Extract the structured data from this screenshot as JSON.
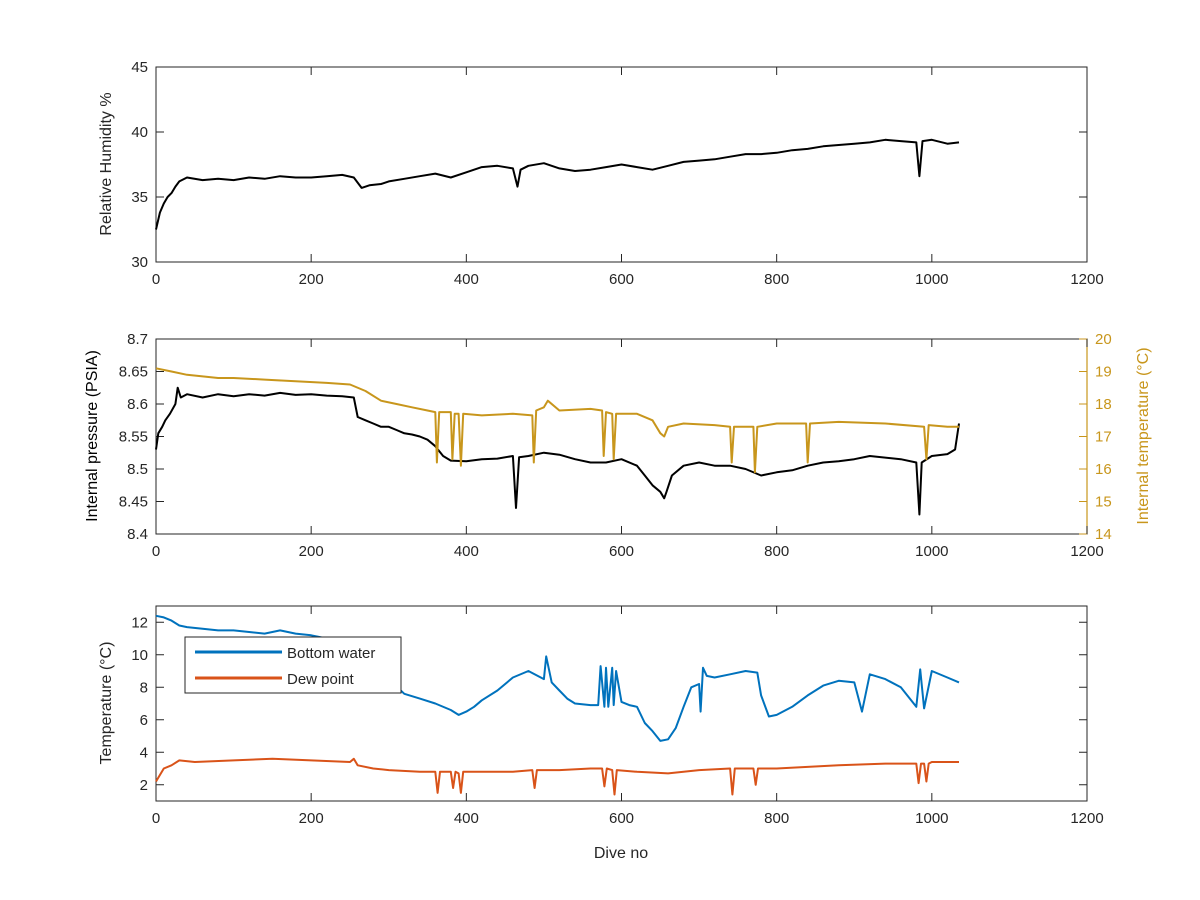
{
  "chart_data": [
    {
      "type": "line",
      "panel": "top",
      "ylabel": "Relative Humidity %",
      "xlim": [
        0,
        1200
      ],
      "ylim": [
        30,
        45
      ],
      "xticks": [
        0,
        200,
        400,
        600,
        800,
        1000,
        1200
      ],
      "yticks": [
        30,
        35,
        40,
        45
      ],
      "grid": false,
      "series": [
        {
          "color": "#000000",
          "x": [
            0,
            5,
            10,
            15,
            20,
            25,
            30,
            40,
            60,
            80,
            100,
            120,
            140,
            160,
            180,
            200,
            220,
            240,
            255,
            265,
            275,
            290,
            300,
            320,
            340,
            360,
            380,
            400,
            420,
            440,
            460,
            466,
            470,
            480,
            500,
            520,
            540,
            560,
            580,
            600,
            620,
            640,
            660,
            680,
            700,
            720,
            740,
            760,
            780,
            800,
            820,
            840,
            860,
            880,
            900,
            920,
            940,
            960,
            980,
            984,
            988,
            1000,
            1020,
            1035
          ],
          "y": [
            32.5,
            33.8,
            34.5,
            35.0,
            35.3,
            35.8,
            36.2,
            36.5,
            36.3,
            36.4,
            36.3,
            36.5,
            36.4,
            36.6,
            36.5,
            36.5,
            36.6,
            36.7,
            36.5,
            35.7,
            35.9,
            36.0,
            36.2,
            36.4,
            36.6,
            36.8,
            36.5,
            36.9,
            37.3,
            37.4,
            37.2,
            35.8,
            37.1,
            37.4,
            37.6,
            37.2,
            37.0,
            37.1,
            37.3,
            37.5,
            37.3,
            37.1,
            37.4,
            37.7,
            37.8,
            37.9,
            38.1,
            38.3,
            38.3,
            38.4,
            38.6,
            38.7,
            38.9,
            39.0,
            39.1,
            39.2,
            39.4,
            39.3,
            39.2,
            36.6,
            39.3,
            39.4,
            39.1,
            39.2
          ]
        }
      ]
    },
    {
      "type": "line",
      "panel": "middle",
      "ylabel": "Internal pressure (PSIA)",
      "y2label": "Internal temperature (°C)",
      "xlim": [
        0,
        1200
      ],
      "ylim": [
        8.4,
        8.7
      ],
      "y2lim": [
        14,
        20
      ],
      "xticks": [
        0,
        200,
        400,
        600,
        800,
        1000,
        1200
      ],
      "yticks": [
        8.4,
        8.45,
        8.5,
        8.55,
        8.6,
        8.65,
        8.7
      ],
      "y2ticks": [
        14,
        15,
        16,
        17,
        18,
        19,
        20
      ],
      "grid": false,
      "series": [
        {
          "axis": "left",
          "color": "#000000",
          "x": [
            0,
            3,
            8,
            12,
            18,
            25,
            28,
            32,
            40,
            60,
            80,
            100,
            120,
            140,
            160,
            180,
            200,
            220,
            240,
            255,
            260,
            270,
            280,
            290,
            300,
            310,
            320,
            330,
            340,
            350,
            360,
            370,
            380,
            400,
            420,
            440,
            460,
            464,
            468,
            480,
            500,
            520,
            540,
            560,
            580,
            600,
            620,
            630,
            640,
            650,
            655,
            658,
            665,
            680,
            700,
            720,
            740,
            760,
            780,
            800,
            820,
            840,
            860,
            880,
            900,
            920,
            960,
            980,
            984,
            987,
            1000,
            1020,
            1030,
            1035
          ],
          "y": [
            8.53,
            8.555,
            8.565,
            8.575,
            8.585,
            8.6,
            8.625,
            8.61,
            8.615,
            8.61,
            8.615,
            8.612,
            8.615,
            8.613,
            8.617,
            8.614,
            8.615,
            8.613,
            8.612,
            8.61,
            8.58,
            8.575,
            8.57,
            8.565,
            8.565,
            8.56,
            8.555,
            8.553,
            8.55,
            8.545,
            8.535,
            8.52,
            8.513,
            8.512,
            8.515,
            8.516,
            8.52,
            8.44,
            8.518,
            8.52,
            8.525,
            8.522,
            8.515,
            8.51,
            8.51,
            8.515,
            8.505,
            8.49,
            8.475,
            8.465,
            8.455,
            8.465,
            8.49,
            8.505,
            8.51,
            8.505,
            8.505,
            8.5,
            8.49,
            8.495,
            8.498,
            8.505,
            8.51,
            8.512,
            8.515,
            8.52,
            8.515,
            8.51,
            8.43,
            8.51,
            8.52,
            8.523,
            8.53,
            8.57
          ]
        },
        {
          "axis": "right",
          "color": "#c8961c",
          "x": [
            0,
            20,
            40,
            60,
            80,
            100,
            140,
            180,
            220,
            250,
            270,
            290,
            310,
            330,
            350,
            360,
            362,
            365,
            380,
            382,
            385,
            390,
            393,
            396,
            420,
            460,
            485,
            487,
            490,
            500,
            505,
            520,
            560,
            575,
            577,
            580,
            588,
            590,
            593,
            620,
            640,
            650,
            655,
            660,
            680,
            720,
            740,
            742,
            745,
            770,
            772,
            775,
            800,
            838,
            840,
            843,
            880,
            940,
            990,
            993,
            996,
            1020,
            1035
          ],
          "y": [
            19.1,
            19.0,
            18.9,
            18.85,
            18.8,
            18.8,
            18.75,
            18.7,
            18.65,
            18.6,
            18.4,
            18.1,
            18.0,
            17.9,
            17.8,
            17.75,
            16.2,
            17.75,
            17.75,
            16.3,
            17.7,
            17.7,
            16.1,
            17.7,
            17.65,
            17.7,
            17.65,
            16.2,
            17.8,
            17.9,
            18.1,
            17.8,
            17.85,
            17.8,
            16.4,
            17.75,
            17.7,
            16.3,
            17.7,
            17.7,
            17.5,
            17.1,
            17.0,
            17.3,
            17.4,
            17.35,
            17.3,
            16.2,
            17.3,
            17.3,
            15.9,
            17.3,
            17.4,
            17.4,
            16.2,
            17.4,
            17.45,
            17.4,
            17.3,
            16.3,
            17.35,
            17.3,
            17.3
          ]
        }
      ]
    },
    {
      "type": "line",
      "panel": "bottom",
      "xlabel": "Dive no",
      "ylabel": "Temperature (°C)",
      "xlim": [
        0,
        1200
      ],
      "ylim": [
        1,
        13
      ],
      "xticks": [
        0,
        200,
        400,
        600,
        800,
        1000,
        1200
      ],
      "yticks": [
        2,
        4,
        6,
        8,
        10,
        12
      ],
      "grid": false,
      "legend": "top-left",
      "series": [
        {
          "name": "Bottom water",
          "color": "#0072bd",
          "x": [
            0,
            10,
            20,
            30,
            40,
            60,
            80,
            100,
            120,
            140,
            160,
            180,
            200,
            220,
            240,
            260,
            280,
            300,
            320,
            340,
            360,
            380,
            390,
            400,
            410,
            420,
            440,
            460,
            480,
            500,
            503,
            510,
            520,
            530,
            540,
            560,
            570,
            573,
            578,
            580,
            583,
            588,
            590,
            593,
            600,
            610,
            620,
            630,
            640,
            650,
            660,
            670,
            680,
            690,
            700,
            702,
            705,
            710,
            720,
            740,
            760,
            775,
            780,
            790,
            800,
            820,
            840,
            860,
            880,
            900,
            910,
            920,
            940,
            960,
            980,
            985,
            990,
            1000,
            1020,
            1035
          ],
          "y": [
            12.4,
            12.3,
            12.1,
            11.8,
            11.7,
            11.6,
            11.5,
            11.5,
            11.4,
            11.3,
            11.5,
            11.3,
            11.2,
            11.0,
            10.7,
            10.3,
            9.8,
            8.5,
            7.6,
            7.3,
            7.0,
            6.6,
            6.3,
            6.5,
            6.8,
            7.2,
            7.8,
            8.6,
            9.0,
            8.5,
            9.9,
            8.3,
            7.8,
            7.3,
            7.0,
            6.9,
            6.9,
            9.3,
            6.8,
            9.2,
            6.8,
            9.2,
            6.9,
            9.0,
            7.1,
            6.9,
            6.8,
            5.8,
            5.3,
            4.7,
            4.8,
            5.5,
            6.8,
            8.0,
            8.2,
            6.5,
            9.2,
            8.7,
            8.6,
            8.8,
            9.0,
            8.9,
            7.5,
            6.2,
            6.3,
            6.8,
            7.5,
            8.1,
            8.4,
            8.3,
            6.5,
            8.8,
            8.5,
            8.0,
            6.8,
            9.1,
            6.7,
            9.0,
            8.6,
            8.3
          ]
        },
        {
          "name": "Dew point",
          "color": "#d95319",
          "x": [
            0,
            5,
            10,
            20,
            30,
            50,
            100,
            150,
            200,
            250,
            255,
            260,
            280,
            300,
            340,
            360,
            363,
            366,
            380,
            383,
            386,
            390,
            393,
            396,
            420,
            460,
            485,
            488,
            491,
            520,
            560,
            575,
            578,
            581,
            588,
            591,
            594,
            620,
            660,
            700,
            740,
            743,
            746,
            770,
            773,
            776,
            800,
            840,
            880,
            940,
            980,
            983,
            986,
            990,
            993,
            996,
            1000,
            1035
          ],
          "y": [
            2.2,
            2.6,
            3.0,
            3.2,
            3.5,
            3.4,
            3.5,
            3.6,
            3.5,
            3.4,
            3.6,
            3.2,
            3.0,
            2.9,
            2.8,
            2.8,
            1.5,
            2.8,
            2.8,
            1.8,
            2.8,
            2.7,
            1.5,
            2.8,
            2.8,
            2.8,
            2.9,
            1.8,
            2.9,
            2.9,
            3.0,
            3.0,
            1.9,
            3.0,
            2.9,
            1.4,
            2.9,
            2.8,
            2.7,
            2.9,
            3.0,
            1.4,
            3.0,
            3.0,
            2.0,
            3.0,
            3.0,
            3.1,
            3.2,
            3.3,
            3.3,
            2.1,
            3.3,
            3.3,
            2.2,
            3.3,
            3.4,
            3.4
          ]
        }
      ]
    }
  ]
}
